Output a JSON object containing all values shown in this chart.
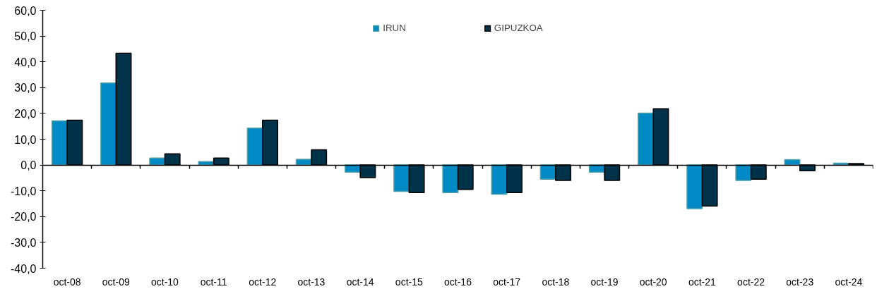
{
  "chart_data": {
    "type": "bar",
    "categories": [
      "oct-08",
      "oct-09",
      "oct-10",
      "oct-11",
      "oct-12",
      "oct-13",
      "oct-14",
      "oct-15",
      "oct-16",
      "oct-17",
      "oct-18",
      "oct-19",
      "oct-20",
      "oct-21",
      "oct-22",
      "oct-23",
      "oct-24"
    ],
    "series": [
      {
        "name": "IRUN",
        "color": "#008bc6",
        "values": [
          17.1,
          31.8,
          2.7,
          1.3,
          14.3,
          2.2,
          -2.8,
          -10.2,
          -10.7,
          -11.3,
          -5.5,
          -2.8,
          20.1,
          -16.9,
          -6.0,
          2.1,
          0.7
        ]
      },
      {
        "name": "GIPUZKOA",
        "color": "#003349",
        "values": [
          17.4,
          43.3,
          4.3,
          2.7,
          17.4,
          5.9,
          -4.9,
          -10.7,
          -9.5,
          -10.7,
          -6.0,
          -6.0,
          21.8,
          -15.9,
          -5.5,
          -2.2,
          0.6
        ]
      }
    ],
    "ylim": [
      -40,
      60
    ],
    "yticks": [
      {
        "value": -40,
        "label": "-40,0"
      },
      {
        "value": -30,
        "label": "-30,0"
      },
      {
        "value": -20,
        "label": "-20,0"
      },
      {
        "value": -10,
        "label": "-10,0"
      },
      {
        "value": 0,
        "label": "0,0"
      },
      {
        "value": 10,
        "label": "10,0"
      },
      {
        "value": 20,
        "label": "20,0"
      },
      {
        "value": 30,
        "label": "30,0"
      },
      {
        "value": 40,
        "label": "40,0"
      },
      {
        "value": 50,
        "label": "50,0"
      },
      {
        "value": 60,
        "label": "60,0"
      }
    ],
    "legend": "top"
  }
}
